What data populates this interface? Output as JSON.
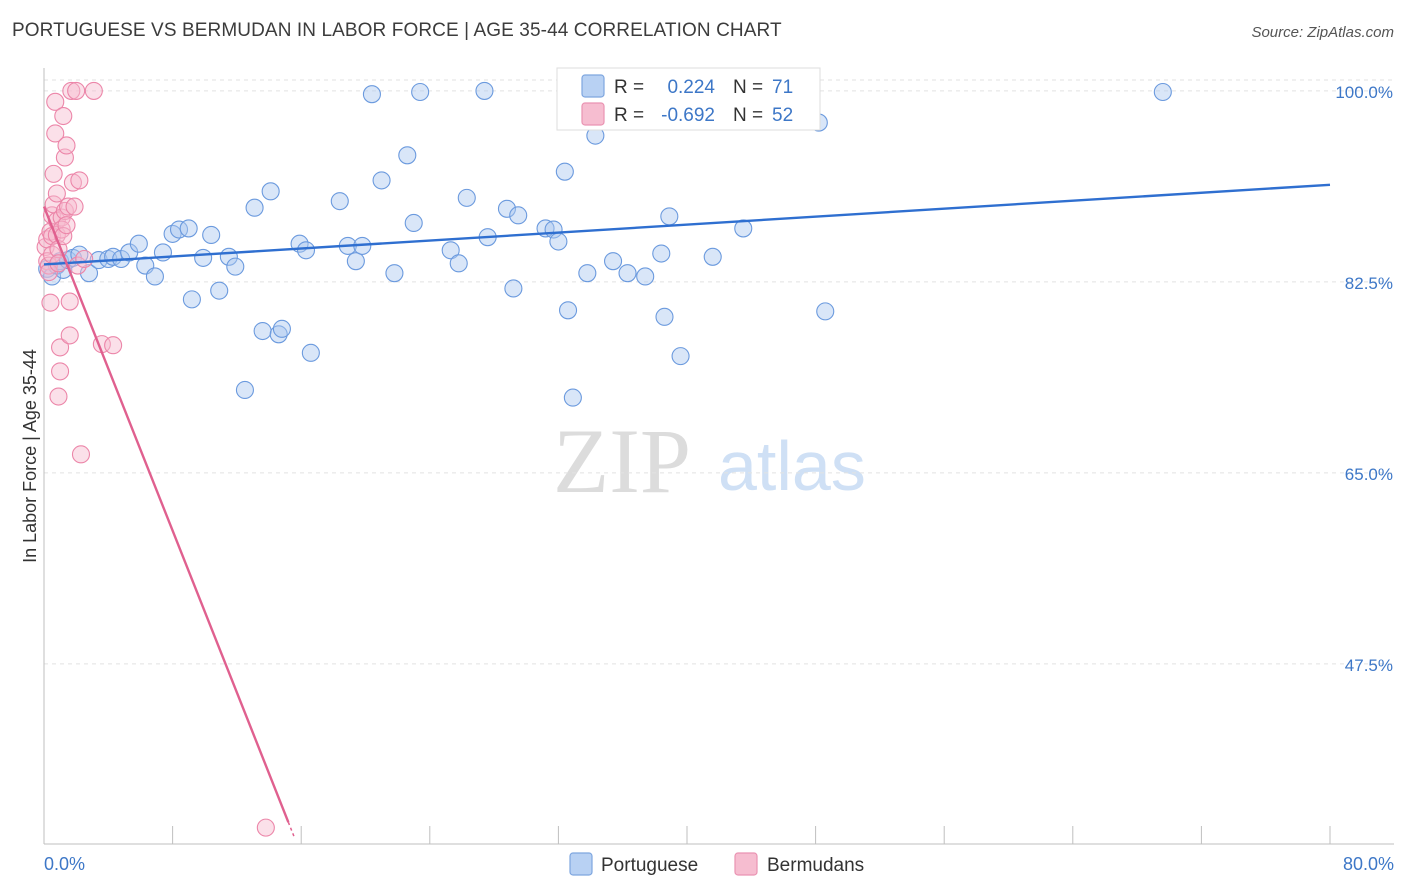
{
  "title": "PORTUGUESE VS BERMUDAN IN LABOR FORCE | AGE 35-44 CORRELATION CHART",
  "source": "Source: ZipAtlas.com",
  "colors": {
    "portuguese": "#4f8fe0",
    "bermudans": "#e8628f",
    "axis_text": "#3d77c7"
  },
  "chart_data": {
    "type": "scatter",
    "title": "PORTUGUESE VS BERMUDAN IN LABOR FORCE | AGE 35-44 CORRELATION CHART",
    "xlabel": "",
    "ylabel": "In Labor Force | Age 35-44",
    "xlim": [
      0,
      80
    ],
    "ylim": [
      31,
      101
    ],
    "x_tick_labels": [
      "0.0%",
      "80.0%"
    ],
    "y_ticks": [
      47.5,
      65.0,
      82.5,
      100.0
    ],
    "y_tick_labels": [
      "47.5%",
      "65.0%",
      "82.5%",
      "100.0%"
    ],
    "watermark": {
      "part1": "ZIP",
      "part2": "atlas"
    },
    "legend": [
      {
        "r_label": "R =",
        "r_value": "0.224",
        "n_label": "N =",
        "n_value": "71"
      },
      {
        "r_label": "R =",
        "r_value": "-0.692",
        "n_label": "N =",
        "n_value": "52"
      }
    ],
    "series": [
      {
        "name": "Portuguese",
        "trend": {
          "x": [
            0,
            80
          ],
          "y": [
            84.1,
            91.4
          ]
        },
        "points": [
          [
            0.2,
            83.7
          ],
          [
            0.5,
            83.0
          ],
          [
            0.8,
            84.0
          ],
          [
            1.0,
            84.4
          ],
          [
            1.2,
            83.6
          ],
          [
            1.5,
            84.5
          ],
          [
            1.8,
            84.7
          ],
          [
            2.2,
            85.0
          ],
          [
            2.8,
            83.3
          ],
          [
            3.4,
            84.5
          ],
          [
            4.0,
            84.6
          ],
          [
            4.3,
            84.8
          ],
          [
            4.8,
            84.6
          ],
          [
            5.3,
            85.2
          ],
          [
            5.9,
            86.0
          ],
          [
            6.3,
            84.0
          ],
          [
            6.9,
            83.0
          ],
          [
            7.4,
            85.2
          ],
          [
            8.0,
            86.9
          ],
          [
            8.4,
            87.3
          ],
          [
            9.0,
            87.4
          ],
          [
            9.2,
            80.9
          ],
          [
            9.9,
            84.7
          ],
          [
            10.4,
            86.8
          ],
          [
            10.9,
            81.7
          ],
          [
            11.5,
            84.8
          ],
          [
            11.9,
            83.9
          ],
          [
            12.5,
            72.6
          ],
          [
            13.1,
            89.3
          ],
          [
            13.6,
            78.0
          ],
          [
            14.1,
            90.8
          ],
          [
            14.6,
            77.7
          ],
          [
            14.8,
            78.2
          ],
          [
            15.9,
            86.0
          ],
          [
            16.3,
            85.4
          ],
          [
            16.6,
            76.0
          ],
          [
            18.4,
            89.9
          ],
          [
            18.9,
            85.8
          ],
          [
            19.4,
            84.4
          ],
          [
            19.8,
            85.8
          ],
          [
            20.4,
            99.7
          ],
          [
            21.0,
            91.8
          ],
          [
            21.8,
            83.3
          ],
          [
            22.6,
            94.1
          ],
          [
            23.0,
            87.9
          ],
          [
            23.4,
            99.9
          ],
          [
            25.3,
            85.4
          ],
          [
            25.8,
            84.2
          ],
          [
            26.3,
            90.2
          ],
          [
            27.4,
            100.0
          ],
          [
            27.6,
            86.6
          ],
          [
            28.8,
            89.2
          ],
          [
            29.2,
            81.9
          ],
          [
            29.5,
            88.6
          ],
          [
            31.2,
            87.4
          ],
          [
            31.7,
            87.3
          ],
          [
            32.0,
            86.2
          ],
          [
            32.4,
            92.6
          ],
          [
            32.6,
            79.9
          ],
          [
            32.9,
            71.9
          ],
          [
            33.8,
            83.3
          ],
          [
            34.3,
            95.9
          ],
          [
            35.4,
            84.4
          ],
          [
            36.3,
            83.3
          ],
          [
            37.4,
            83.0
          ],
          [
            38.4,
            85.1
          ],
          [
            38.6,
            79.3
          ],
          [
            38.9,
            88.5
          ],
          [
            39.6,
            75.7
          ],
          [
            41.6,
            84.8
          ],
          [
            43.5,
            87.4
          ],
          [
            48.2,
            97.1
          ],
          [
            48.6,
            79.8
          ],
          [
            69.6,
            99.9
          ]
        ]
      },
      {
        "name": "Bermudans",
        "trend": {
          "x": [
            0,
            15.2
          ],
          "y": [
            89.4,
            33.0
          ]
        },
        "points": [
          [
            0.1,
            85.7
          ],
          [
            0.2,
            86.4
          ],
          [
            0.2,
            84.4
          ],
          [
            0.3,
            84.0
          ],
          [
            0.3,
            83.4
          ],
          [
            0.4,
            80.6
          ],
          [
            0.4,
            87.1
          ],
          [
            0.5,
            88.6
          ],
          [
            0.5,
            85.0
          ],
          [
            0.5,
            86.7
          ],
          [
            0.6,
            89.6
          ],
          [
            0.6,
            92.4
          ],
          [
            0.7,
            96.1
          ],
          [
            0.7,
            99.0
          ],
          [
            0.8,
            90.6
          ],
          [
            0.8,
            88.1
          ],
          [
            0.8,
            86.8
          ],
          [
            0.9,
            85.5
          ],
          [
            0.9,
            84.2
          ],
          [
            0.9,
            72.0
          ],
          [
            1.0,
            76.5
          ],
          [
            1.0,
            74.3
          ],
          [
            1.1,
            88.4
          ],
          [
            1.1,
            87.3
          ],
          [
            1.2,
            86.7
          ],
          [
            1.2,
            97.7
          ],
          [
            1.3,
            93.9
          ],
          [
            1.3,
            89.0
          ],
          [
            1.4,
            95.0
          ],
          [
            1.4,
            87.7
          ],
          [
            1.5,
            89.4
          ],
          [
            1.6,
            80.7
          ],
          [
            1.6,
            77.6
          ],
          [
            1.7,
            100.0
          ],
          [
            1.8,
            91.6
          ],
          [
            1.9,
            89.4
          ],
          [
            2.0,
            100.0
          ],
          [
            2.1,
            84.0
          ],
          [
            2.2,
            91.8
          ],
          [
            2.3,
            66.7
          ],
          [
            2.5,
            84.6
          ],
          [
            3.1,
            100.0
          ],
          [
            3.6,
            76.8
          ],
          [
            4.3,
            76.7
          ],
          [
            13.8,
            32.5
          ]
        ]
      }
    ]
  },
  "bottom_legend": [
    {
      "label": "Portuguese"
    },
    {
      "label": "Bermudans"
    }
  ]
}
